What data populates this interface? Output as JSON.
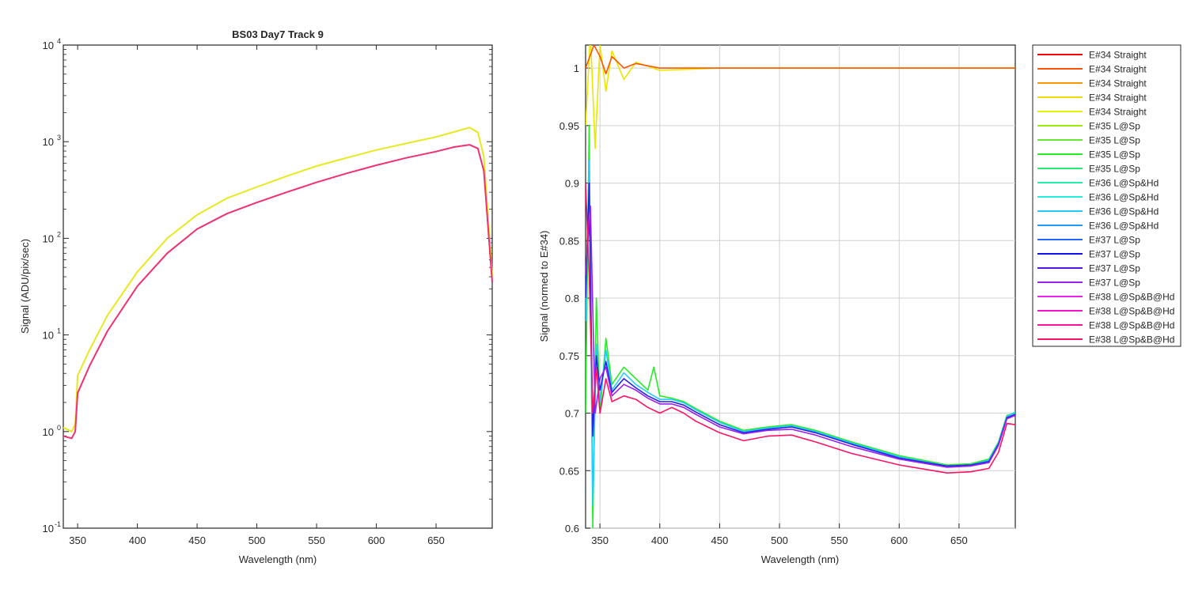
{
  "chart_data": [
    {
      "type": "line",
      "title": "BS03 Day7 Track 9",
      "xlabel": "Wavelength (nm)",
      "ylabel": "Signal (ADU/pix/sec)",
      "xlim": [
        338,
        697
      ],
      "ylim": [
        0.1,
        10000
      ],
      "yscale": "log",
      "grid": false,
      "x_ticks": [
        350,
        400,
        450,
        500,
        550,
        600,
        650
      ],
      "x_tick_labels": [
        "350",
        "400",
        "450",
        "500",
        "550",
        "600",
        "650"
      ],
      "y_ticks": [
        0.1,
        1,
        10,
        100,
        1000,
        10000
      ],
      "y_tick_labels": [
        {
          "base": "10",
          "exp": "-1"
        },
        {
          "base": "10",
          "exp": "0"
        },
        {
          "base": "10",
          "exp": "1"
        },
        {
          "base": "10",
          "exp": "2"
        },
        {
          "base": "10",
          "exp": "3"
        },
        {
          "base": "10",
          "exp": "4"
        }
      ],
      "series": [
        {
          "color": "#e8e820",
          "x": [
            338,
            345,
            348,
            350,
            360,
            375,
            400,
            425,
            450,
            475,
            500,
            525,
            550,
            575,
            600,
            625,
            650,
            665,
            678,
            685,
            690,
            697
          ],
          "y": [
            1.1,
            1.0,
            1.2,
            3.8,
            7.0,
            16,
            45,
            100,
            175,
            260,
            340,
            440,
            560,
            680,
            820,
            960,
            1120,
            1260,
            1400,
            1250,
            700,
            40
          ]
        },
        {
          "color": "#f03070",
          "x": [
            338,
            345,
            348,
            350,
            360,
            375,
            400,
            425,
            450,
            475,
            500,
            525,
            550,
            575,
            600,
            625,
            650,
            665,
            678,
            685,
            690,
            697
          ],
          "y": [
            0.9,
            0.85,
            1.0,
            2.5,
            4.8,
            11,
            32,
            70,
            125,
            180,
            235,
            300,
            380,
            470,
            570,
            680,
            790,
            880,
            930,
            850,
            500,
            35
          ]
        }
      ]
    },
    {
      "type": "line",
      "title": "",
      "xlabel": "Wavelength (nm)",
      "ylabel": "Signal (normed to E#34)",
      "xlim": [
        338,
        697
      ],
      "ylim": [
        0.6,
        1.02
      ],
      "grid": true,
      "legend_position": "outside-right",
      "x_ticks": [
        350,
        400,
        450,
        500,
        550,
        600,
        650
      ],
      "x_tick_labels": [
        "350",
        "400",
        "450",
        "500",
        "550",
        "600",
        "650"
      ],
      "y_ticks": [
        0.6,
        0.65,
        0.7,
        0.75,
        0.8,
        0.85,
        0.9,
        0.95,
        1
      ],
      "y_tick_labels": [
        "0.6",
        "0.65",
        "0.7",
        "0.75",
        "0.8",
        "0.85",
        "0.9",
        "0.95",
        "1"
      ],
      "legend": [
        {
          "label": "E#34 Straight",
          "color": "#ff0000"
        },
        {
          "label": "E#34 Straight",
          "color": "#ff5500"
        },
        {
          "label": "E#34 Straight",
          "color": "#ff9900"
        },
        {
          "label": "E#34 Straight",
          "color": "#f2d900"
        },
        {
          "label": "E#34 Straight",
          "color": "#e6f000"
        },
        {
          "label": "E#35 L@Sp",
          "color": "#99ee00"
        },
        {
          "label": "E#35 L@Sp",
          "color": "#66e833"
        },
        {
          "label": "E#35 L@Sp",
          "color": "#22ee22"
        },
        {
          "label": "E#35 L@Sp",
          "color": "#22ee77"
        },
        {
          "label": "E#36 L@Sp&Hd",
          "color": "#22eeaa"
        },
        {
          "label": "E#36 L@Sp&Hd",
          "color": "#22eedd"
        },
        {
          "label": "E#36 L@Sp&Hd",
          "color": "#22ccff"
        },
        {
          "label": "E#36 L@Sp&Hd",
          "color": "#2299ff"
        },
        {
          "label": "E#37 L@Sp",
          "color": "#2266ff"
        },
        {
          "label": "E#37 L@Sp",
          "color": "#1111ee"
        },
        {
          "label": "E#37 L@Sp",
          "color": "#5511ee"
        },
        {
          "label": "E#37 L@Sp",
          "color": "#9922ee"
        },
        {
          "label": "E#38 L@Sp&B@Hd",
          "color": "#ee22ee"
        },
        {
          "label": "E#38 L@Sp&B@Hd",
          "color": "#ff11cc"
        },
        {
          "label": "E#38 L@Sp&B@Hd",
          "color": "#ff1199"
        },
        {
          "label": "E#38 L@Sp&B@Hd",
          "color": "#ff1166"
        }
      ],
      "series": [
        {
          "label": "E#34 Straight",
          "color": "#e8e800",
          "x": [
            338,
            342,
            346,
            350,
            355,
            360,
            370,
            380,
            400,
            450,
            500,
            600,
            697
          ],
          "y": [
            0.95,
            1.03,
            0.93,
            1.02,
            0.98,
            1.015,
            0.99,
            1.005,
            0.998,
            1.0,
            1.0,
            1.0,
            1.0
          ]
        },
        {
          "label": "E#34 Straight",
          "color": "#ff5500",
          "x": [
            338,
            345,
            350,
            355,
            360,
            370,
            380,
            400,
            450,
            500,
            600,
            697
          ],
          "y": [
            1.0,
            1.02,
            1.01,
            0.995,
            1.01,
            1.0,
            1.004,
            1.0,
            1.0,
            1.0,
            1.0,
            1.0
          ]
        },
        {
          "label": "E#35 L@Sp",
          "color": "#22ee22",
          "x": [
            338,
            341,
            344,
            347,
            350,
            355,
            360,
            370,
            380,
            390,
            395,
            400,
            410,
            420,
            430,
            450,
            470,
            490,
            510,
            530,
            560,
            600,
            640,
            660,
            675,
            683,
            690,
            697
          ],
          "y": [
            0.7,
            0.95,
            0.6,
            0.8,
            0.7,
            0.765,
            0.725,
            0.74,
            0.73,
            0.72,
            0.74,
            0.715,
            0.713,
            0.71,
            0.704,
            0.693,
            0.685,
            0.688,
            0.69,
            0.685,
            0.675,
            0.663,
            0.655,
            0.656,
            0.66,
            0.675,
            0.698,
            0.7
          ]
        },
        {
          "label": "E#36 L@Sp&Hd",
          "color": "#22ccff",
          "x": [
            338,
            341,
            344,
            347,
            350,
            355,
            360,
            370,
            380,
            390,
            400,
            410,
            420,
            430,
            450,
            470,
            490,
            510,
            530,
            560,
            600,
            640,
            660,
            675,
            683,
            690,
            697
          ],
          "y": [
            0.78,
            0.92,
            0.62,
            0.76,
            0.71,
            0.755,
            0.72,
            0.735,
            0.725,
            0.718,
            0.712,
            0.712,
            0.709,
            0.703,
            0.692,
            0.684,
            0.687,
            0.689,
            0.684,
            0.674,
            0.662,
            0.654,
            0.655,
            0.659,
            0.674,
            0.697,
            0.701
          ]
        },
        {
          "label": "E#37 L@Sp",
          "color": "#2222ee",
          "x": [
            338,
            341,
            344,
            347,
            350,
            355,
            360,
            370,
            380,
            390,
            400,
            410,
            420,
            430,
            450,
            470,
            490,
            510,
            530,
            560,
            600,
            640,
            660,
            675,
            683,
            690,
            697
          ],
          "y": [
            0.8,
            0.9,
            0.68,
            0.75,
            0.72,
            0.745,
            0.718,
            0.73,
            0.722,
            0.715,
            0.71,
            0.71,
            0.707,
            0.701,
            0.69,
            0.683,
            0.686,
            0.688,
            0.683,
            0.673,
            0.661,
            0.654,
            0.655,
            0.658,
            0.673,
            0.696,
            0.699
          ]
        },
        {
          "label": "E#37 L@Sp",
          "color": "#9922ee",
          "x": [
            338,
            342,
            346,
            350,
            355,
            360,
            370,
            380,
            390,
            400,
            410,
            420,
            430,
            450,
            470,
            490,
            510,
            530,
            560,
            600,
            640,
            660,
            675,
            683,
            690,
            697
          ],
          "y": [
            0.82,
            0.88,
            0.7,
            0.73,
            0.74,
            0.715,
            0.725,
            0.72,
            0.713,
            0.708,
            0.708,
            0.705,
            0.699,
            0.688,
            0.682,
            0.685,
            0.686,
            0.681,
            0.671,
            0.66,
            0.653,
            0.654,
            0.657,
            0.672,
            0.695,
            0.698
          ]
        },
        {
          "label": "E#38 L@Sp&B@Hd",
          "color": "#ff1166",
          "x": [
            338,
            341,
            344,
            347,
            350,
            355,
            360,
            370,
            380,
            390,
            400,
            410,
            420,
            430,
            450,
            470,
            490,
            510,
            530,
            560,
            600,
            640,
            660,
            675,
            683,
            690,
            697
          ],
          "y": [
            0.9,
            0.82,
            0.7,
            0.74,
            0.7,
            0.73,
            0.71,
            0.715,
            0.712,
            0.705,
            0.7,
            0.705,
            0.7,
            0.693,
            0.683,
            0.676,
            0.68,
            0.681,
            0.675,
            0.665,
            0.655,
            0.648,
            0.649,
            0.652,
            0.666,
            0.691,
            0.69
          ]
        }
      ]
    }
  ]
}
